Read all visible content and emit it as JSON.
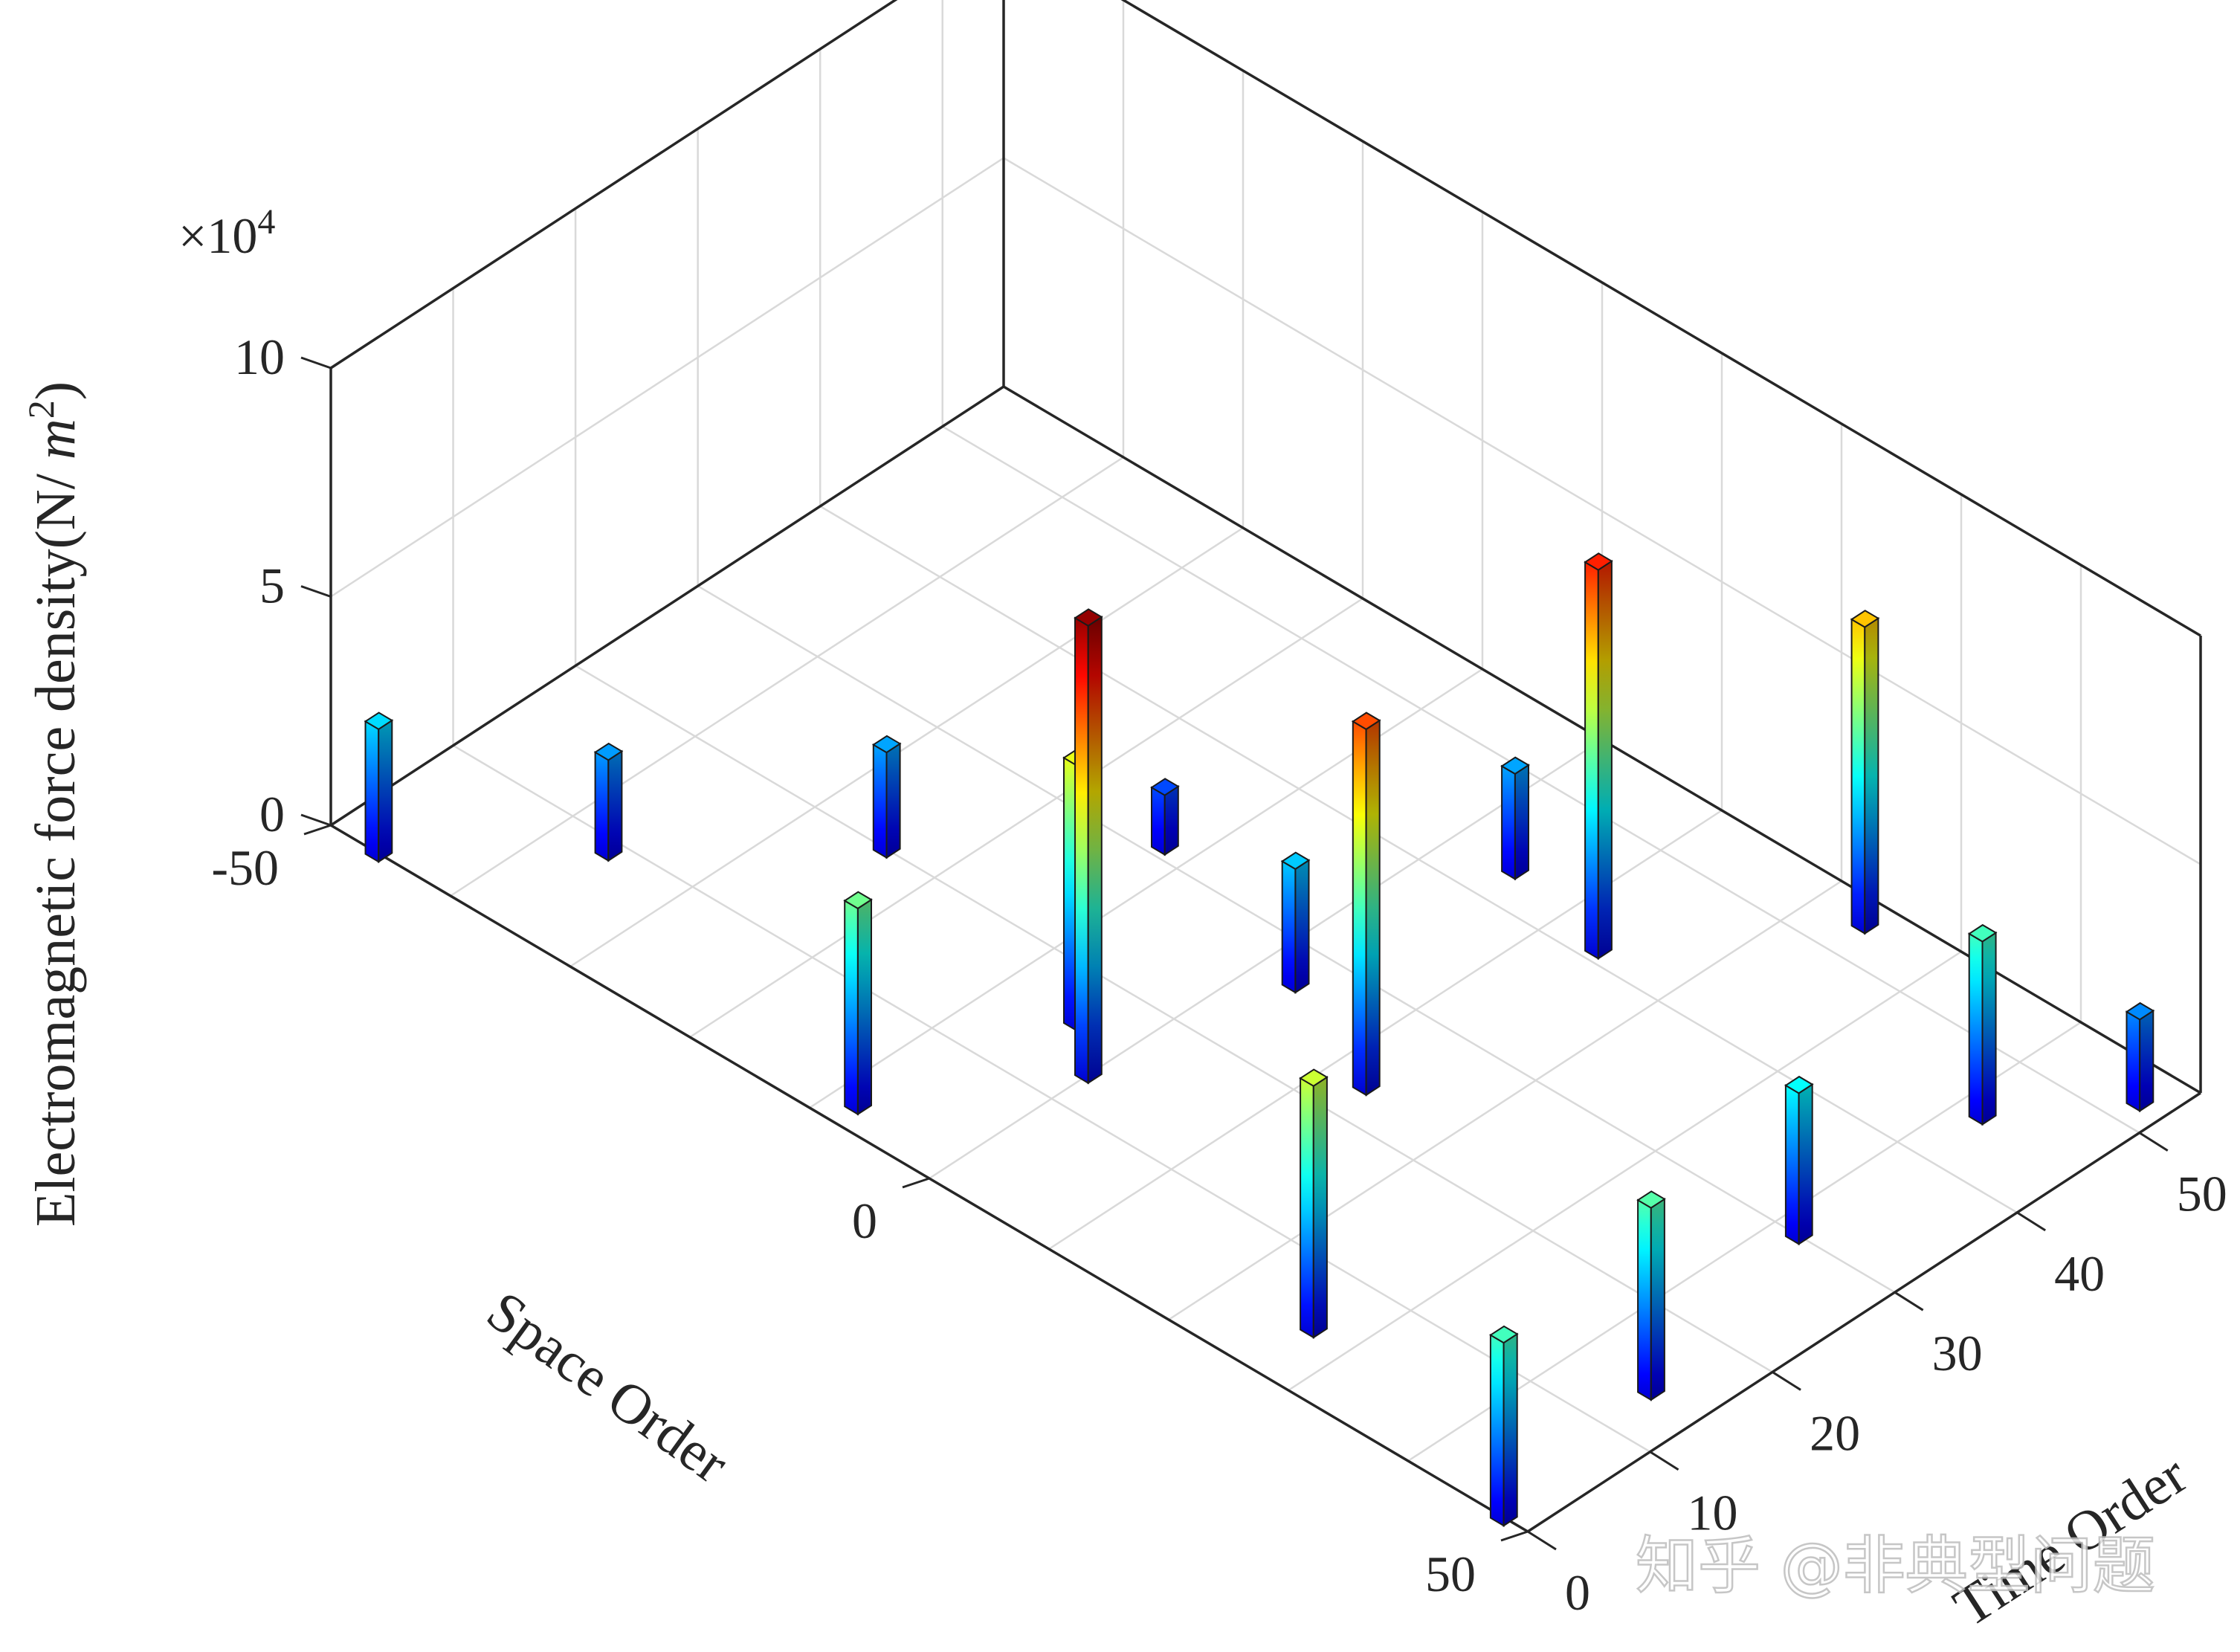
{
  "chart_data": {
    "type": "bar3d",
    "title": "",
    "xlabel": "Space Order",
    "ylabel": "Time Order",
    "zlabel_main": "Electromagnetic force density(N/ ",
    "zlabel_unit_var": "m",
    "zlabel_unit_exp": "2",
    "zlabel_close": ")",
    "z_multiplier_base": "×10",
    "z_multiplier_exp": "4",
    "xlim": [
      -50,
      50
    ],
    "ylim": [
      0,
      55
    ],
    "zlim": [
      0,
      100000
    ],
    "x_ticks": [
      {
        "value": -50,
        "label": "-50"
      },
      {
        "value": 0,
        "label": "0"
      },
      {
        "value": 50,
        "label": "50"
      }
    ],
    "y_ticks": [
      {
        "value": 0,
        "label": "0"
      },
      {
        "value": 10,
        "label": "10"
      },
      {
        "value": 20,
        "label": "20"
      },
      {
        "value": 30,
        "label": "30"
      },
      {
        "value": 40,
        "label": "40"
      },
      {
        "value": 50,
        "label": "50"
      }
    ],
    "z_ticks": [
      {
        "value": 0,
        "label": "0"
      },
      {
        "value": 5,
        "label": "5"
      },
      {
        "value": 10,
        "label": "10"
      }
    ],
    "colormap": "jet",
    "grid": true,
    "peaks": [
      {
        "x": -46,
        "y": 0,
        "z": 29000
      },
      {
        "x": -36,
        "y": 9,
        "z": 22000
      },
      {
        "x": -24,
        "y": 20,
        "z": 23000
      },
      {
        "x": -12,
        "y": 31,
        "z": 13000
      },
      {
        "x": -8,
        "y": 2,
        "z": 45000
      },
      {
        "x": -4,
        "y": 16,
        "z": 58000
      },
      {
        "x": 0,
        "y": 13,
        "z": 100000
      },
      {
        "x": 3,
        "y": 27,
        "z": 27000
      },
      {
        "x": 5,
        "y": 43,
        "z": 23000
      },
      {
        "x": 13,
        "y": 23,
        "z": 80000
      },
      {
        "x": 14,
        "y": 41,
        "z": 85000
      },
      {
        "x": 24,
        "y": 53,
        "z": 67000
      },
      {
        "x": 27,
        "y": 5,
        "z": 55000
      },
      {
        "x": 42,
        "y": 30,
        "z": 33000
      },
      {
        "x": 42,
        "y": 45,
        "z": 40000
      },
      {
        "x": 46,
        "y": 14,
        "z": 42000
      },
      {
        "x": 48,
        "y": 0,
        "z": 40000
      },
      {
        "x": 48,
        "y": 52,
        "z": 20000
      }
    ]
  },
  "watermark": "知乎 @非典型问题"
}
